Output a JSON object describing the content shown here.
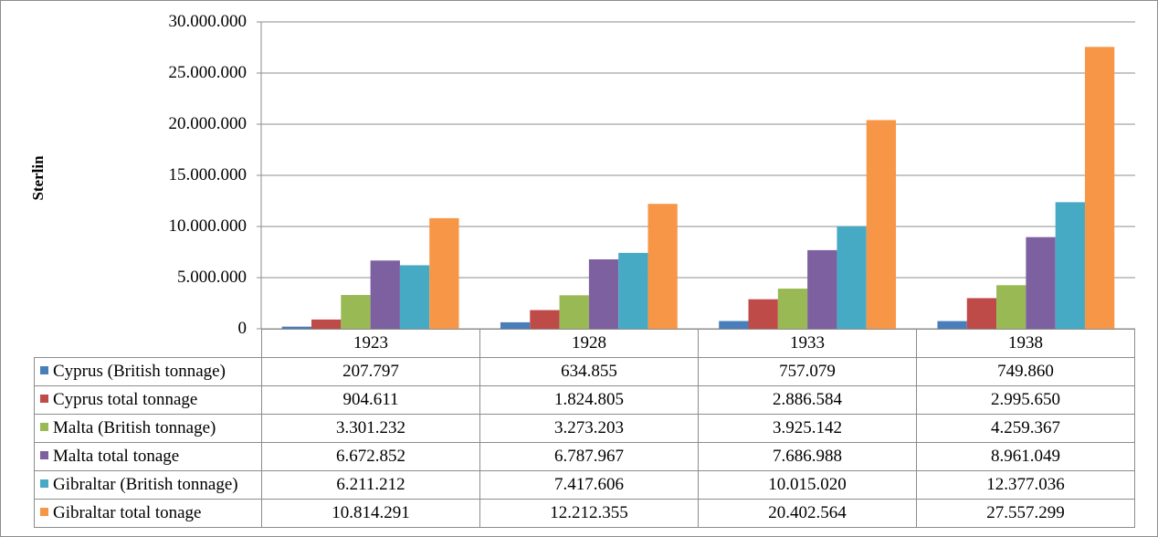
{
  "chart_data": {
    "type": "bar",
    "ylabel": "Sterlin",
    "ylim": [
      0,
      30000000
    ],
    "yticks": [
      "0",
      "5.000.000",
      "10.000.000",
      "15.000.000",
      "20.000.000",
      "25.000.000",
      "30.000.000"
    ],
    "ytick_values": [
      0,
      5000000,
      10000000,
      15000000,
      20000000,
      25000000,
      30000000
    ],
    "grid": true,
    "legend": "data-table",
    "categories": [
      "1923",
      "1928",
      "1933",
      "1938"
    ],
    "series": [
      {
        "name": "Cyprus (British tonnage)",
        "color": "#4a7ebb",
        "values": [
          207797,
          634855,
          757079,
          749860
        ],
        "labels": [
          "207.797",
          "634.855",
          "757.079",
          "749.860"
        ]
      },
      {
        "name": "Cyprus total tonnage",
        "color": "#be4b48",
        "values": [
          904611,
          1824805,
          2886584,
          2995650
        ],
        "labels": [
          "904.611",
          "1.824.805",
          "2.886.584",
          "2.995.650"
        ]
      },
      {
        "name": "Malta (British tonnage)",
        "color": "#98b954",
        "values": [
          3301232,
          3273203,
          3925142,
          4259367
        ],
        "labels": [
          "3.301.232",
          "3.273.203",
          "3.925.142",
          "4.259.367"
        ]
      },
      {
        "name": "Malta total tonage",
        "color": "#7d60a0",
        "values": [
          6672852,
          6787967,
          7686988,
          8961049
        ],
        "labels": [
          "6.672.852",
          "6.787.967",
          "7.686.988",
          "8.961.049"
        ]
      },
      {
        "name": "Gibraltar (British tonnage)",
        "color": "#46aac5",
        "values": [
          6211212,
          7417606,
          10015020,
          12377036
        ],
        "labels": [
          "6.211.212",
          "7.417.606",
          "10.015.020",
          "12.377.036"
        ]
      },
      {
        "name": "Gibraltar total tonage",
        "color": "#f79646",
        "values": [
          10814291,
          12212355,
          20402564,
          27557299
        ],
        "labels": [
          "10.814.291",
          "12.212.355",
          "20.402.564",
          "27.557.299"
        ]
      }
    ]
  }
}
